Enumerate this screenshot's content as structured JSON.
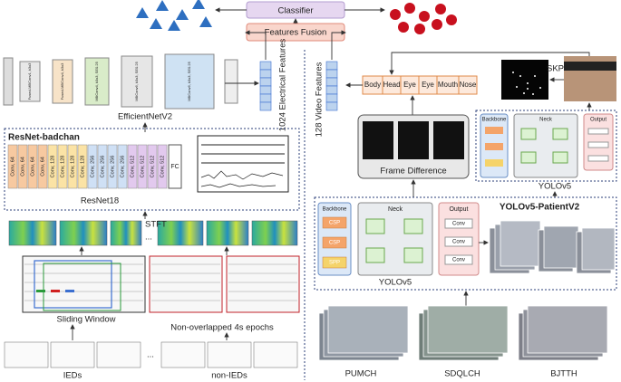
{
  "top": {
    "classifier": "Classifier",
    "fusion": "Features Fusion"
  },
  "eeg": {
    "efficientnet": {
      "label": "EfficientNetV2",
      "blocks": [
        "Fused-MBConv1, k3x3",
        "Fused-MBConv4, k3x3",
        "MBConv4, k3x3, SE0.25",
        "MBConv6, k3x3, SE0.25",
        "MBConv6, k3x3, SE0.25"
      ]
    },
    "features": "1024 Electrical Features",
    "resnet": {
      "title": "ResNet-badchan",
      "label": "ResNet18",
      "fc": "FC",
      "convs": [
        "Conv, 64",
        "Conv, 64",
        "Conv, 64",
        "Conv, 64",
        "Conv, 128",
        "Conv, 128",
        "Conv, 128",
        "Conv, 128",
        "Conv, 256",
        "Conv, 256",
        "Conv, 256",
        "Conv, 256",
        "Conv, 512",
        "Conv, 512",
        "Conv, 512",
        "Conv, 512"
      ]
    },
    "stft": "STFT",
    "ellipsis": "...",
    "sliding": "Sliding Window",
    "epochs": "Non-overlapped 4s epochs",
    "ieds": "IEDs",
    "non_ieds": "non-IEDs"
  },
  "video": {
    "features": "128 Video Features",
    "parts": [
      "Body",
      "Head",
      "Eye",
      "Eye",
      "Mouth",
      "Nose"
    ],
    "skps": "SKPS",
    "frame_difference": "Frame Difference",
    "yolo_small": {
      "backbone": "Backbone",
      "neck": "Neck",
      "output": "Output",
      "label": "YOLOv5"
    },
    "patient": {
      "title": "YOLOv5-PatientV2",
      "backbone": "Backbone",
      "neck": "Neck",
      "output": "Output",
      "label": "YOLOv5",
      "csp": [
        "CSP",
        "CSP",
        "SPP"
      ],
      "conv": [
        "Conv",
        "Conv",
        "Conv"
      ]
    },
    "hospitals": [
      "PUMCH",
      "SDQLCH",
      "BJTTH"
    ]
  }
}
